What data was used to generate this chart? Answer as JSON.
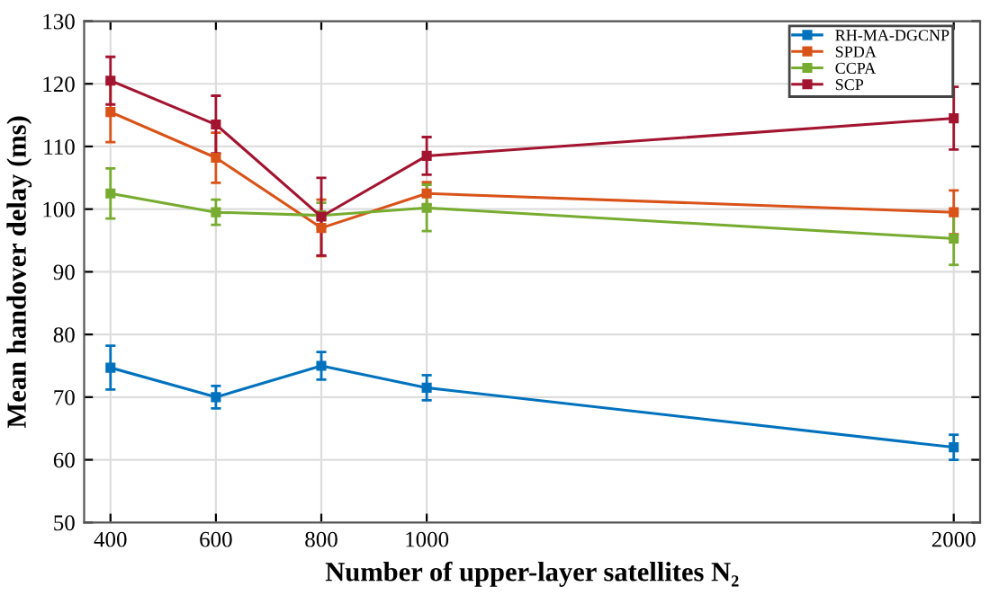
{
  "chart_data": {
    "type": "line",
    "xlabel": "Number of upper-layer satellites N₂",
    "ylabel": "Mean handover delay (ms)",
    "x": [
      400,
      600,
      800,
      1000,
      2000
    ],
    "series": [
      {
        "name": "RH-MA-DGCNP",
        "color": "#0072bd",
        "values": [
          74.7,
          70,
          75,
          71.5,
          62
        ],
        "errors": [
          3.5,
          1.8,
          2.2,
          2,
          2
        ]
      },
      {
        "name": "SPDA",
        "color": "#d95319",
        "values": [
          115.5,
          108.2,
          97,
          102.5,
          99.5
        ],
        "errors": [
          4.8,
          4,
          4.5,
          1.8,
          3.5
        ]
      },
      {
        "name": "CCPA",
        "color": "#77ac30",
        "values": [
          102.5,
          99.5,
          99,
          100.2,
          95.3
        ],
        "errors": [
          4,
          2,
          2,
          3.7,
          4.2
        ]
      },
      {
        "name": "SCP",
        "color": "#a2142f",
        "values": [
          120.5,
          113.5,
          98.8,
          108.5,
          114.5
        ],
        "errors": [
          3.8,
          4.6,
          6.2,
          3,
          5
        ]
      }
    ],
    "xlim": [
      350,
      2050
    ],
    "ylim": [
      50,
      130
    ],
    "xticks": [
      400,
      600,
      800,
      1000,
      2000
    ],
    "yticks": [
      50,
      60,
      70,
      80,
      90,
      100,
      110,
      120,
      130
    ],
    "grid": true,
    "legend": "top right",
    "marker": "square",
    "line_style": "solid"
  }
}
